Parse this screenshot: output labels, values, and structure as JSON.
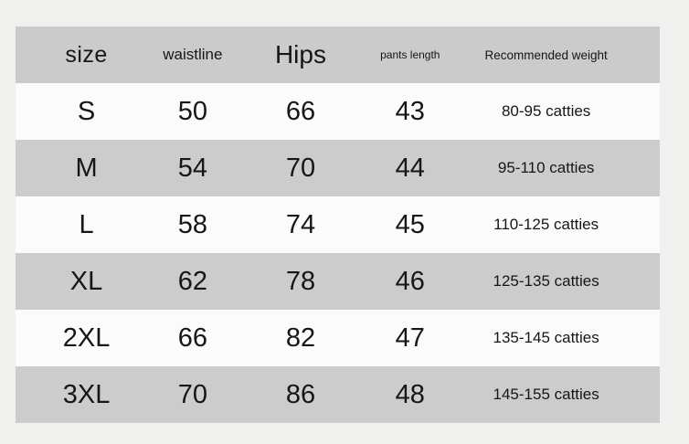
{
  "chart_data": {
    "type": "table",
    "title": "",
    "columns": [
      "size",
      "waistline",
      "Hips",
      "pants length",
      "Recommended weight"
    ],
    "rows": [
      [
        "S",
        "50",
        "66",
        "43",
        "80-95 catties"
      ],
      [
        "M",
        "54",
        "70",
        "44",
        "95-110 catties"
      ],
      [
        "L",
        "58",
        "74",
        "45",
        "110-125 catties"
      ],
      [
        "XL",
        "62",
        "78",
        "46",
        "125-135 catties"
      ],
      [
        "2XL",
        "66",
        "82",
        "47",
        "135-145 catties"
      ],
      [
        "3XL",
        "70",
        "86",
        "48",
        "145-155 catties"
      ]
    ],
    "layout_hints": {
      "header_background": "#cbcbcb",
      "row_alternate_background": "#cccccc",
      "row_background": "#fbfbfb",
      "page_background": "#f0f0ef",
      "text_color": "#161616",
      "striping": "header gray, then rows alternate white/gray"
    }
  }
}
